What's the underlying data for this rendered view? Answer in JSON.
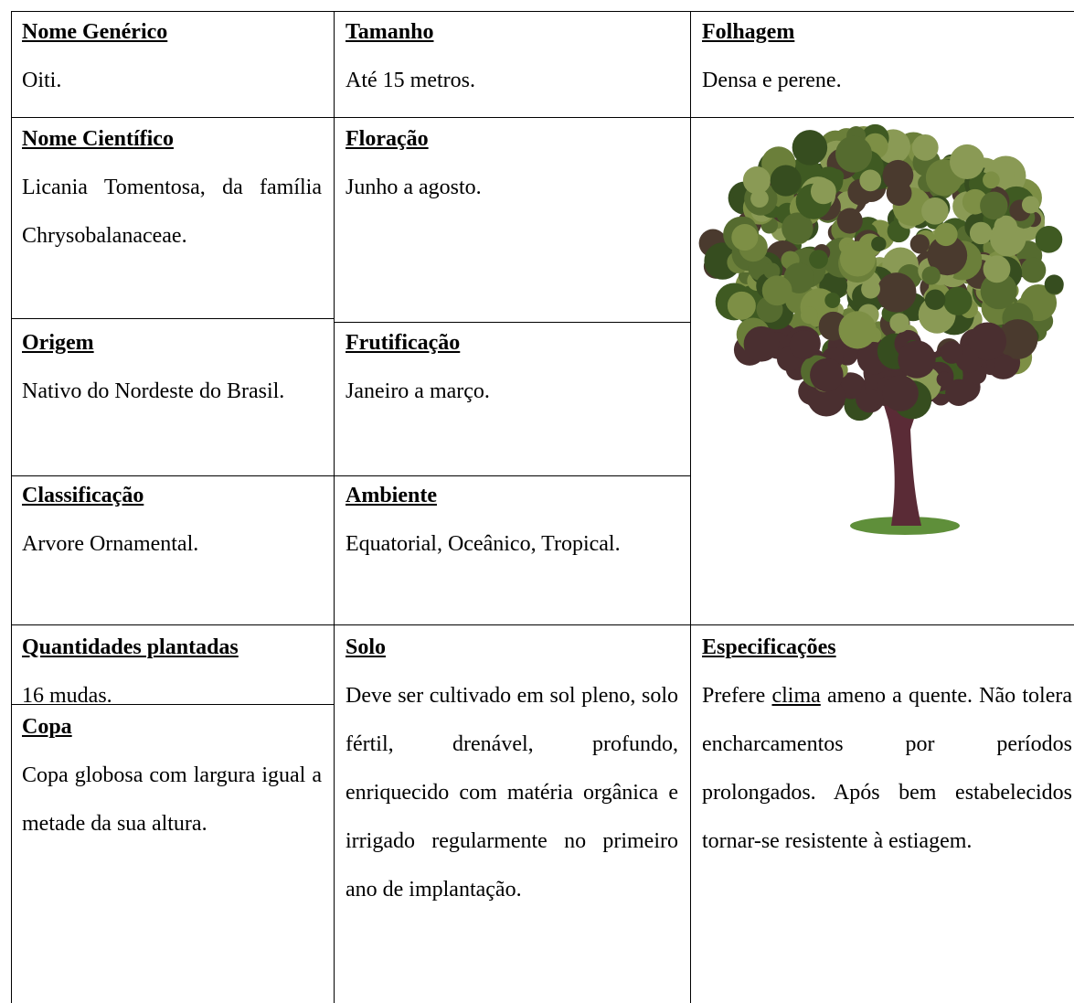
{
  "cells": [
    {
      "heading": "Nome Genérico",
      "text": "Oiti."
    },
    {
      "heading": "Tamanho",
      "text": "Até 15 metros."
    },
    {
      "heading": "Folhagem",
      "text": "Densa e perene."
    },
    {
      "heading": "Nome Científico",
      "text": "Licania Tomentosa, da família Chrysobalanaceae."
    },
    {
      "heading": "Floração",
      "text": "Junho a agosto."
    },
    {
      "heading": "Origem",
      "text": "Nativo do Nordeste do Brasil."
    },
    {
      "heading": "Frutificação",
      "text": "Janeiro a março."
    },
    {
      "heading": "Classificação",
      "text": "Arvore Ornamental."
    },
    {
      "heading": "Ambiente",
      "text": "Equatorial, Oceânico, Tropical."
    },
    {
      "heading": "Quantidades plantadas",
      "text": "16 mudas."
    },
    {
      "heading": "Solo",
      "text": "Deve ser cultivado em sol pleno, solo fértil, drenável, profundo, enriquecido com matéria orgânica e irrigado regularmente no primeiro ano de implantação."
    },
    {
      "heading": "Especificações",
      "text_before": "Prefere ",
      "link": "clima",
      "text_after": " ameno a quente. Não tolera encharcamentos por períodos prolongados. Após bem estabelecidos tornar-se resistente à estiagem."
    },
    {
      "heading": "Copa",
      "text": "Copa globosa com largura igual a metade da sua altura."
    }
  ]
}
